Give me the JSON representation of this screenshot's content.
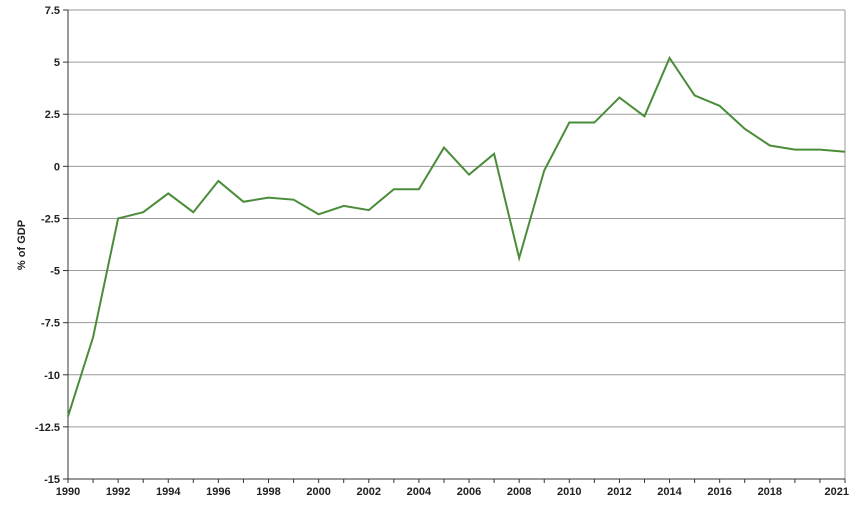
{
  "chart_data": {
    "type": "line",
    "title": "",
    "xlabel": "",
    "ylabel": "% of GDP",
    "xlim": [
      1990,
      2021
    ],
    "ylim": [
      -15,
      7.5
    ],
    "grid": true,
    "line_color": "#4a8c3a",
    "grid_color": "#9a9a9a",
    "x_ticks": [
      "1990",
      "1992",
      "1994",
      "1996",
      "1998",
      "2000",
      "2002",
      "2004",
      "2006",
      "2008",
      "2010",
      "2012",
      "2014",
      "2016",
      "2018",
      "2021"
    ],
    "y_ticks": [
      "7.5",
      "5",
      "2.5",
      "0",
      "-2.5",
      "-5",
      "-7.5",
      "-10",
      "-12.5",
      "-15"
    ],
    "series": [
      {
        "x": [
          1990,
          1991,
          1992,
          1993,
          1994,
          1995,
          1996,
          1997,
          1998,
          1999,
          2000,
          2001,
          2002,
          2003,
          2004,
          2005,
          2006,
          2007,
          2008,
          2009,
          2010,
          2011,
          2012,
          2013,
          2014,
          2015,
          2016,
          2017,
          2018,
          2019,
          2020,
          2021
        ],
        "values": [
          -12.0,
          -8.2,
          -2.5,
          -2.2,
          -1.3,
          -2.2,
          -0.7,
          -1.7,
          -1.5,
          -1.6,
          -2.3,
          -1.9,
          -2.1,
          -1.1,
          -1.1,
          0.9,
          -0.4,
          0.6,
          -4.4,
          -0.2,
          2.1,
          2.1,
          3.3,
          2.4,
          5.2,
          3.4,
          2.9,
          1.8,
          1.0,
          0.8,
          0.8,
          0.7
        ]
      }
    ]
  }
}
